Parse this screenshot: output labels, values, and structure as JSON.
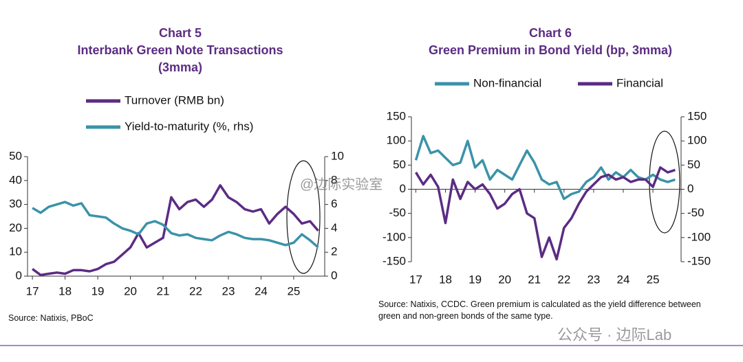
{
  "chart_data": [
    {
      "type": "line",
      "title": "Chart 5",
      "subtitle": "Interbank Green Note Transactions (3mma)",
      "x": [
        17,
        17.25,
        17.5,
        17.75,
        18,
        18.25,
        18.5,
        18.75,
        19,
        19.25,
        19.5,
        19.75,
        20,
        20.25,
        20.5,
        20.75,
        21,
        21.25,
        21.5,
        21.75,
        22,
        22.25,
        22.5,
        22.75,
        23,
        23.25,
        23.5,
        23.75,
        24,
        24.25,
        24.5,
        24.75,
        25,
        25.25,
        25.5,
        25.75
      ],
      "series": [
        {
          "name": "Turnover (RMB bn)",
          "color": "#5b2c83",
          "values": [
            3,
            0.5,
            1,
            1.5,
            1,
            2.5,
            2.5,
            2,
            3,
            5,
            6,
            9,
            12,
            18,
            12,
            14,
            16,
            33,
            28,
            31,
            32,
            29,
            32,
            38,
            33,
            31,
            28,
            27,
            28,
            22,
            26,
            29,
            26,
            22,
            23,
            19
          ]
        },
        {
          "name": "Yield-to-maturity (%, rhs)",
          "color": "#3a93a8",
          "axis": "y2",
          "values": [
            5.7,
            5.3,
            5.8,
            6.0,
            6.2,
            5.9,
            6.1,
            5.1,
            5.0,
            4.9,
            4.4,
            4.0,
            3.8,
            3.5,
            4.4,
            4.6,
            4.3,
            3.6,
            3.4,
            3.5,
            3.2,
            3.1,
            3.0,
            3.4,
            3.7,
            3.5,
            3.2,
            3.1,
            3.1,
            3.0,
            2.8,
            2.6,
            2.8,
            3.5,
            3.0,
            2.4
          ]
        }
      ],
      "xlim": [
        16.85,
        25.95
      ],
      "xticks": [
        17,
        18,
        19,
        20,
        21,
        22,
        23,
        24,
        25
      ],
      "ylim": [
        0,
        50
      ],
      "yticks": [
        0,
        10,
        20,
        30,
        40,
        50
      ],
      "y2lim": [
        0,
        10
      ],
      "y2ticks": [
        0,
        2,
        4,
        6,
        8,
        10
      ],
      "source": "Source: Natixis, PBoC"
    },
    {
      "type": "line",
      "title": "Chart 6",
      "subtitle": "Green Premium in Bond Yield (bp, 3mma)",
      "x": [
        17,
        17.25,
        17.5,
        17.75,
        18,
        18.25,
        18.5,
        18.75,
        19,
        19.25,
        19.5,
        19.75,
        20,
        20.25,
        20.5,
        20.75,
        21,
        21.25,
        21.5,
        21.75,
        22,
        22.25,
        22.5,
        22.75,
        23,
        23.25,
        23.5,
        23.75,
        24,
        24.25,
        24.5,
        24.75,
        25,
        25.25,
        25.5,
        25.75
      ],
      "series": [
        {
          "name": "Non-financial",
          "color": "#3a93a8",
          "values": [
            60,
            110,
            75,
            80,
            65,
            50,
            55,
            100,
            45,
            60,
            20,
            40,
            30,
            20,
            50,
            80,
            55,
            20,
            10,
            15,
            -20,
            -10,
            -5,
            15,
            25,
            45,
            20,
            35,
            25,
            40,
            25,
            20,
            30,
            20,
            15,
            20
          ]
        },
        {
          "name": "Financial",
          "color": "#5b2c83",
          "values": [
            35,
            10,
            30,
            5,
            -70,
            20,
            -20,
            15,
            0,
            10,
            -10,
            -40,
            -30,
            -10,
            0,
            -50,
            -60,
            -140,
            -100,
            -145,
            -80,
            -60,
            -30,
            -5,
            10,
            25,
            30,
            20,
            25,
            15,
            20,
            20,
            5,
            45,
            35,
            40
          ]
        }
      ],
      "xlim": [
        16.85,
        25.95
      ],
      "xticks": [
        17,
        18,
        19,
        20,
        21,
        22,
        23,
        24,
        25
      ],
      "ylim": [
        -150,
        150
      ],
      "yticks": [
        -150,
        -100,
        -50,
        0,
        50,
        100,
        150
      ],
      "y2lim": [
        -150,
        150
      ],
      "y2ticks": [
        -150,
        -100,
        -50,
        0,
        50,
        100,
        150
      ],
      "source": "Source: Natixis, CCDC. Green premium is calculated as the yield difference between green and non-green bonds of the same type."
    }
  ],
  "watermarks": [
    "@边际实验室",
    "公众号 · 边际Lab"
  ]
}
